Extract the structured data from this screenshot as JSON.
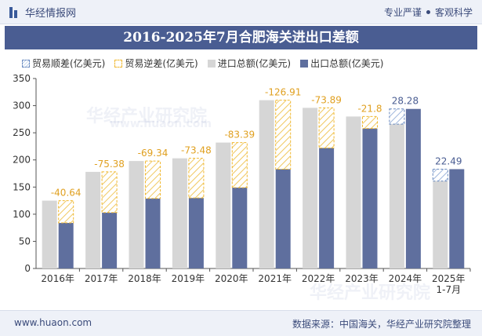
{
  "header": {
    "brand": "华经情报网",
    "tag1": "专业严谨",
    "tag2": "客观科学"
  },
  "title": "2016-2025年7月合肥海关进出口差额",
  "legend": [
    "贸易顺差(亿美元)",
    "贸易逆差(亿美元)",
    "进口总额(亿美元)",
    "出口总额(亿美元)"
  ],
  "footer": {
    "url": "www.huaon.com",
    "source": "数据来源：中国海关，华经产业研究院整理"
  },
  "watermark": [
    "华经产业研究院",
    "www.huaon.com"
  ],
  "colors": {
    "import": "#d6d6d6",
    "export": "#5f6f9e",
    "deficit_border": "#f0b830",
    "surplus_border": "#6a8abf",
    "label": "#e0a020",
    "surplus_label": "#4a5d92"
  },
  "chart_data": {
    "type": "bar",
    "categories": [
      "2016年",
      "2017年",
      "2018年",
      "2019年",
      "2020年",
      "2021年",
      "2022年",
      "2023年",
      "2024年",
      "2025年\n1-7月"
    ],
    "series": [
      {
        "name": "进口总额(亿美元)",
        "values": [
          125,
          178,
          198,
          203,
          232,
          310,
          296,
          280,
          266,
          161
        ]
      },
      {
        "name": "出口总额(亿美元)",
        "values": [
          84,
          103,
          129,
          130,
          149,
          183,
          222,
          258,
          294,
          183
        ]
      }
    ],
    "balance": [
      -40.64,
      -75.38,
      -69.34,
      -73.48,
      -83.39,
      -126.91,
      -73.89,
      -21.8,
      28.28,
      22.49
    ],
    "balance_labels": [
      "-40.64",
      "-75.38",
      "-69.34",
      "-73.48",
      "-83.39",
      "-126.91",
      "-73.89",
      "-21.8",
      "28.28",
      "22.49"
    ],
    "ylim": [
      0,
      350
    ],
    "yticks": [
      0,
      50,
      100,
      150,
      200,
      250,
      300,
      350
    ],
    "grid": false,
    "legend_position": "top-left"
  }
}
